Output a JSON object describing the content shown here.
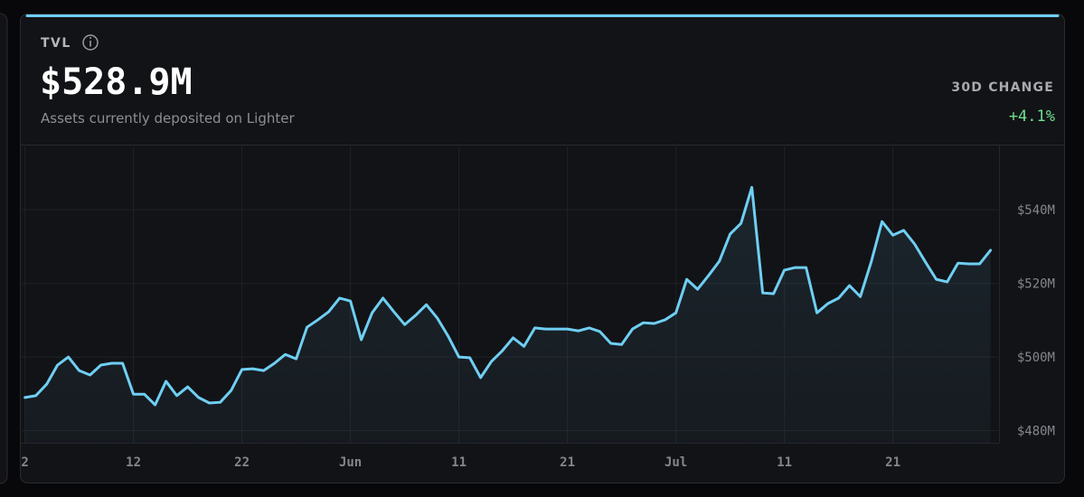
{
  "header": {
    "title": "TVL",
    "value": "$528.9M",
    "subtitle": "Assets currently deposited on Lighter",
    "change_label": "30D CHANGE",
    "change": "+4.1%"
  },
  "chart_data": {
    "type": "line",
    "color": "#6fcff3",
    "grid": true,
    "x": [
      0,
      1,
      2,
      3,
      4,
      5,
      6,
      7,
      8,
      9,
      10,
      11,
      12,
      13,
      14,
      15,
      16,
      17,
      18,
      19,
      20,
      21,
      22,
      23,
      24,
      25,
      26,
      27,
      28,
      29,
      30,
      31,
      32,
      33,
      34,
      35,
      36,
      37,
      38,
      39,
      40,
      41,
      42,
      43,
      44,
      45,
      46,
      47,
      48,
      49,
      50,
      51,
      52,
      53,
      54,
      55,
      56,
      57,
      58,
      59,
      60,
      61,
      62,
      63,
      64,
      65,
      66,
      67,
      68,
      69,
      70,
      71,
      72,
      73,
      74,
      75,
      76,
      77,
      78,
      79,
      80,
      81,
      82,
      83,
      84,
      85,
      86,
      87,
      88,
      89
    ],
    "values": [
      489.0,
      489.5,
      492.6,
      497.8,
      500.0,
      496.3,
      495.1,
      497.8,
      498.3,
      498.3,
      489.9,
      489.9,
      487.0,
      493.4,
      489.5,
      491.9,
      489.0,
      487.5,
      487.7,
      490.9,
      496.6,
      496.8,
      496.3,
      498.3,
      500.7,
      499.5,
      508.1,
      510.1,
      512.3,
      516.0,
      515.2,
      504.7,
      512.0,
      516.0,
      512.3,
      508.8,
      511.3,
      514.2,
      510.6,
      505.7,
      500.0,
      499.8,
      494.4,
      498.8,
      501.7,
      505.2,
      502.9,
      507.9,
      507.6,
      507.6,
      507.6,
      507.1,
      507.9,
      506.9,
      503.7,
      503.4,
      507.6,
      509.3,
      509.1,
      510.1,
      512.0,
      521.1,
      518.4,
      522.1,
      526.0,
      533.4,
      536.3,
      546.1,
      517.4,
      517.2,
      523.6,
      524.3,
      524.3,
      512.0,
      514.5,
      516.0,
      519.4,
      516.4,
      525.8,
      536.8,
      533.1,
      534.4,
      530.7,
      525.8,
      521.1,
      520.4,
      525.5,
      525.3,
      525.3,
      529.0
    ],
    "xlim": [
      -0.3,
      89.7
    ],
    "xticks": [
      {
        "value": 0,
        "label": "2"
      },
      {
        "value": 10,
        "label": "12"
      },
      {
        "value": 20,
        "label": "22"
      },
      {
        "value": 30,
        "label": "Jun"
      },
      {
        "value": 40,
        "label": "11"
      },
      {
        "value": 50,
        "label": "21"
      },
      {
        "value": 60,
        "label": "Jul"
      },
      {
        "value": 70,
        "label": "11"
      },
      {
        "value": 80,
        "label": "21"
      }
    ],
    "ylim": [
      476.7,
      557.7
    ],
    "yticks": [
      {
        "value": 480,
        "label": "$480M"
      },
      {
        "value": 500,
        "label": "$500M"
      },
      {
        "value": 520,
        "label": "$520M"
      },
      {
        "value": 540,
        "label": "$540M"
      }
    ]
  }
}
